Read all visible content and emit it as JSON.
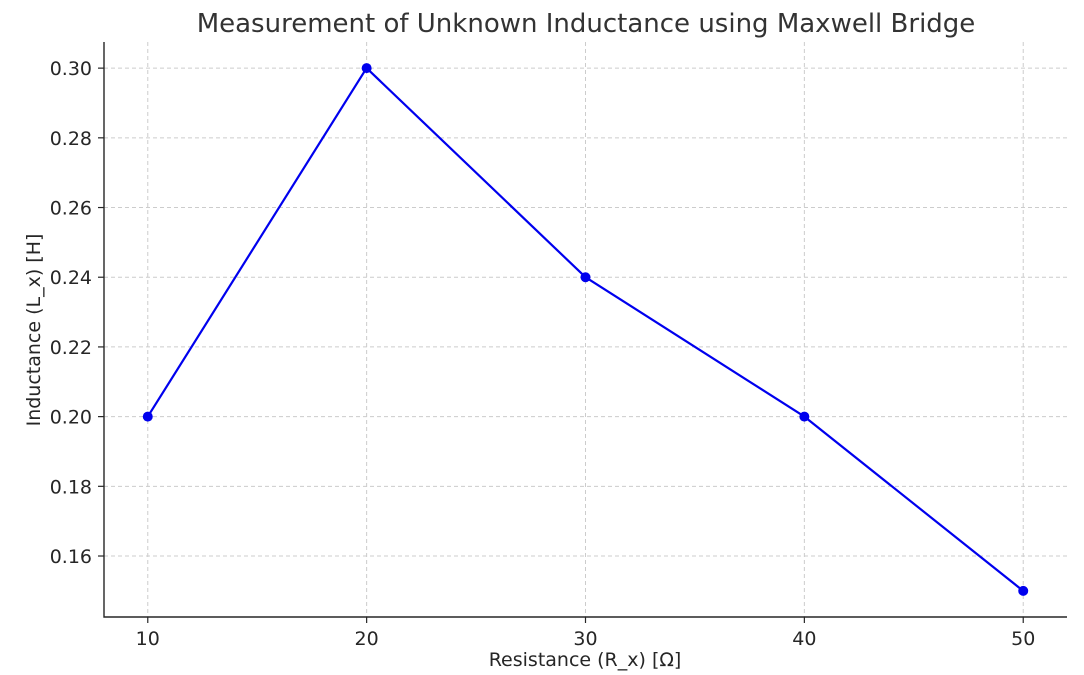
{
  "chart_data": {
    "type": "line",
    "title": "Measurement of Unknown Inductance using Maxwell Bridge",
    "xlabel": "Resistance (R_x) [Ω]",
    "ylabel": "Inductance (L_x) [H]",
    "x": [
      10,
      20,
      30,
      40,
      50
    ],
    "series": [
      {
        "values": [
          0.2,
          0.3,
          0.24,
          0.2,
          0.15
        ],
        "color": "#0000ee",
        "marker": "circle"
      }
    ],
    "xlim": [
      8,
      52
    ],
    "ylim": [
      0.1425,
      0.3075
    ],
    "xticks": [
      10,
      20,
      30,
      40,
      50
    ],
    "xtick_labels": [
      "10",
      "20",
      "30",
      "40",
      "50"
    ],
    "yticks": [
      0.16,
      0.18,
      0.2,
      0.22,
      0.24,
      0.26,
      0.28,
      0.3
    ],
    "ytick_labels": [
      "0.16",
      "0.18",
      "0.20",
      "0.22",
      "0.24",
      "0.26",
      "0.28",
      "0.30"
    ],
    "grid": true,
    "grid_color": "#cccccc",
    "axis_color": "#262626"
  }
}
